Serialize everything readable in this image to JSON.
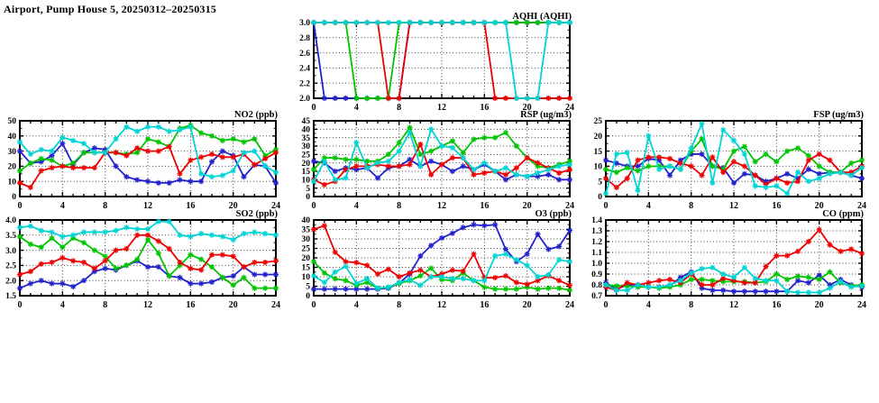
{
  "page": {
    "title": "Airport, Pump House 5, 20250312–20250315"
  },
  "palette": {
    "blue": "#2222cc",
    "green": "#00c400",
    "red": "#ee0000",
    "cyan": "#00d4d4",
    "axis": "#000000",
    "grid": "#444444",
    "background": "#ffffff"
  },
  "chart_data": [
    {
      "key": "aqhi",
      "type": "line",
      "title": "AQHI (AQHI)",
      "xmin": 0,
      "xmax": 24,
      "xtick_step": 4,
      "x_minor_step": 1,
      "ymin": 2.0,
      "ymax": 3.0,
      "ystep": 0.2,
      "ydecimals": 1,
      "grid": true,
      "legend": "none",
      "series": [
        {
          "name": "blue",
          "color_key": "blue",
          "values": [
            3,
            2,
            2,
            2,
            2,
            2,
            2,
            2,
            2,
            3,
            3,
            3,
            3,
            3,
            3,
            3,
            3,
            3,
            3,
            3,
            3,
            3,
            3,
            3,
            3
          ]
        },
        {
          "name": "green",
          "color_key": "green",
          "values": [
            3,
            3,
            3,
            3,
            2,
            2,
            2,
            2,
            3,
            3,
            3,
            3,
            3,
            3,
            3,
            3,
            3,
            3,
            3,
            3,
            3,
            3,
            3,
            3,
            3
          ]
        },
        {
          "name": "red",
          "color_key": "red",
          "values": [
            3,
            3,
            3,
            3,
            3,
            3,
            3,
            2,
            2,
            3,
            3,
            3,
            3,
            3,
            3,
            3,
            3,
            2,
            2,
            2,
            2,
            2,
            2,
            2,
            2
          ]
        },
        {
          "name": "cyan",
          "color_key": "cyan",
          "values": [
            3,
            3,
            3,
            3,
            3,
            3,
            3,
            3,
            3,
            3,
            3,
            3,
            3,
            3,
            3,
            3,
            3,
            3,
            3,
            2,
            2,
            2,
            3,
            3,
            3
          ]
        }
      ]
    },
    {
      "key": "no2",
      "type": "line",
      "title": "NO2 (ppb)",
      "xmin": 0,
      "xmax": 24,
      "xtick_step": 4,
      "x_minor_step": 1,
      "ymin": 0,
      "ymax": 50,
      "ystep": 10,
      "ydecimals": 0,
      "grid": true,
      "legend": "none",
      "series": [
        {
          "name": "blue",
          "color_key": "blue",
          "values": [
            30,
            22,
            23,
            27,
            35,
            21,
            29,
            32,
            31,
            20,
            13,
            11,
            10,
            9,
            9,
            11,
            10,
            10,
            23,
            30,
            27,
            13,
            21,
            20,
            9
          ]
        },
        {
          "name": "green",
          "color_key": "green",
          "values": [
            17,
            22,
            25,
            24,
            20,
            22,
            29,
            29,
            29,
            29,
            28,
            29,
            38,
            36,
            33,
            45,
            47,
            42,
            40,
            37,
            38,
            36,
            38,
            27,
            31
          ]
        },
        {
          "name": "red",
          "color_key": "red",
          "values": [
            9,
            6,
            17,
            19,
            20,
            19,
            19,
            19,
            29,
            29,
            27,
            32,
            30,
            30,
            33,
            15,
            24,
            26,
            28,
            26,
            26,
            28,
            21,
            25,
            29
          ]
        },
        {
          "name": "cyan",
          "color_key": "cyan",
          "values": [
            36,
            28,
            31,
            30,
            39,
            37,
            35,
            29,
            29,
            38,
            46,
            43,
            46,
            46,
            43,
            44,
            46,
            15,
            13,
            14,
            17,
            29,
            30,
            20,
            16
          ]
        }
      ]
    },
    {
      "key": "rsp",
      "type": "line",
      "title": "RSP (ug/m3)",
      "xmin": 0,
      "xmax": 24,
      "xtick_step": 4,
      "x_minor_step": 1,
      "ymin": 0,
      "ymax": 45,
      "ystep": 5,
      "ydecimals": 0,
      "grid": true,
      "legend": "none",
      "series": [
        {
          "name": "blue",
          "color_key": "blue",
          "values": [
            21,
            20,
            15,
            17,
            16,
            17,
            11,
            17,
            18,
            22,
            18,
            21,
            19,
            15,
            18,
            16,
            19,
            15,
            10,
            13,
            12,
            12,
            13,
            10,
            10
          ]
        },
        {
          "name": "green",
          "color_key": "green",
          "values": [
            16,
            23,
            23,
            22,
            22,
            21,
            21,
            25,
            32,
            41,
            25,
            27,
            30,
            33,
            26,
            34,
            35,
            35,
            38,
            30,
            23,
            18,
            17,
            19,
            21
          ]
        },
        {
          "name": "red",
          "color_key": "red",
          "values": [
            10,
            7,
            9,
            16,
            18,
            18,
            19,
            18,
            18,
            19,
            31,
            13,
            19,
            23,
            23,
            13,
            14,
            15,
            13,
            17,
            23,
            20,
            17,
            14,
            16
          ]
        },
        {
          "name": "cyan",
          "color_key": "cyan",
          "values": [
            9,
            21,
            10,
            11,
            32,
            17,
            20,
            21,
            27,
            38,
            18,
            40,
            30,
            29,
            23,
            16,
            20,
            15,
            17,
            13,
            12,
            14,
            16,
            18,
            19
          ]
        }
      ]
    },
    {
      "key": "fsp",
      "type": "line",
      "title": "FSP (ug/m3)",
      "xmin": 0,
      "xmax": 24,
      "xtick_step": 4,
      "x_minor_step": 1,
      "ymin": 0,
      "ymax": 25,
      "ystep": 5,
      "ydecimals": 0,
      "grid": true,
      "legend": "none",
      "series": [
        {
          "name": "blue",
          "color_key": "blue",
          "values": [
            12,
            11,
            10,
            10,
            12.5,
            12,
            7,
            12,
            14,
            14,
            10,
            9.5,
            4.5,
            7.5,
            7,
            5,
            6,
            7.5,
            6,
            9,
            7.5,
            8,
            8,
            7,
            6
          ]
        },
        {
          "name": "green",
          "color_key": "green",
          "values": [
            9,
            8,
            9.5,
            8.5,
            10,
            10,
            10,
            9,
            15,
            19,
            10,
            9,
            15,
            16.5,
            11.5,
            14,
            11.5,
            15,
            16,
            13.5,
            10,
            8,
            8,
            11,
            12
          ]
        },
        {
          "name": "red",
          "color_key": "red",
          "values": [
            6,
            3,
            6,
            12,
            13,
            13,
            12.5,
            11,
            10,
            7,
            13,
            8,
            11.5,
            10,
            7,
            4,
            6,
            4.5,
            5,
            12,
            14,
            12,
            8,
            8,
            10
          ]
        },
        {
          "name": "cyan",
          "color_key": "cyan",
          "values": [
            1,
            14,
            14.5,
            2,
            20,
            9,
            10,
            9,
            16,
            24,
            4.5,
            22,
            18.5,
            14,
            3.5,
            3,
            3.5,
            1,
            8,
            5,
            6,
            7.5,
            8,
            7,
            9.5
          ]
        }
      ]
    },
    {
      "key": "so2",
      "type": "line",
      "title": "SO2 (ppb)",
      "xmin": 0,
      "xmax": 24,
      "xtick_step": 4,
      "x_minor_step": 1,
      "ymin": 1.5,
      "ymax": 4.0,
      "ystep": 0.5,
      "ydecimals": 1,
      "grid": true,
      "legend": "none",
      "series": [
        {
          "name": "blue",
          "color_key": "blue",
          "values": [
            1.75,
            1.9,
            2.0,
            1.9,
            1.9,
            1.8,
            2.0,
            2.3,
            2.4,
            2.35,
            2.5,
            2.65,
            2.45,
            2.45,
            2.15,
            2.1,
            1.9,
            1.9,
            1.95,
            2.1,
            2.15,
            2.45,
            2.2,
            2.2,
            2.2
          ]
        },
        {
          "name": "green",
          "color_key": "green",
          "values": [
            3.45,
            3.2,
            3.1,
            3.4,
            3.1,
            3.4,
            3.25,
            3.0,
            2.8,
            2.4,
            2.5,
            2.7,
            3.35,
            2.9,
            2.15,
            2.5,
            2.85,
            2.7,
            2.45,
            2.1,
            1.85,
            2.1,
            1.75,
            1.75,
            1.75
          ]
        },
        {
          "name": "red",
          "color_key": "red",
          "values": [
            2.2,
            2.3,
            2.55,
            2.6,
            2.75,
            2.65,
            2.6,
            2.4,
            2.65,
            3.0,
            3.05,
            3.5,
            3.5,
            3.3,
            3.05,
            2.6,
            2.4,
            2.35,
            2.85,
            2.85,
            2.8,
            2.45,
            2.6,
            2.6,
            2.65
          ]
        },
        {
          "name": "cyan",
          "color_key": "cyan",
          "values": [
            3.75,
            3.8,
            3.65,
            3.6,
            3.45,
            3.5,
            3.6,
            3.6,
            3.6,
            3.65,
            3.75,
            3.7,
            3.7,
            3.95,
            3.95,
            3.5,
            3.45,
            3.55,
            3.5,
            3.45,
            3.35,
            3.55,
            3.6,
            3.55,
            3.5
          ]
        }
      ]
    },
    {
      "key": "o3",
      "type": "line",
      "title": "O3 (ppb)",
      "xmin": 0,
      "xmax": 24,
      "xtick_step": 4,
      "x_minor_step": 1,
      "ymin": 0,
      "ymax": 40,
      "ystep": 5,
      "ydecimals": 0,
      "grid": true,
      "legend": "none",
      "series": [
        {
          "name": "blue",
          "color_key": "blue",
          "values": [
            3.5,
            3.5,
            3.5,
            3.5,
            3.5,
            3.5,
            3.5,
            4,
            6.5,
            11.5,
            21,
            26.5,
            30.5,
            33,
            36,
            37.5,
            37,
            37.5,
            24.5,
            18,
            22,
            32.5,
            24.5,
            26,
            34.5
          ]
        },
        {
          "name": "green",
          "color_key": "green",
          "values": [
            18,
            12,
            9,
            8,
            5.5,
            7,
            4,
            4.5,
            6.5,
            8,
            10.5,
            14.5,
            8.5,
            8,
            12,
            8,
            4.5,
            3.5,
            3.5,
            3.5,
            4.5,
            3.5,
            4,
            4,
            3
          ]
        },
        {
          "name": "red",
          "color_key": "red",
          "values": [
            35,
            37,
            23,
            18,
            17.5,
            16,
            11.5,
            14,
            10,
            12,
            13.5,
            10,
            11.5,
            13.5,
            13,
            22,
            9.5,
            9.5,
            10.5,
            7,
            6,
            8,
            10.5,
            8,
            5.5
          ]
        },
        {
          "name": "cyan",
          "color_key": "cyan",
          "values": [
            10.5,
            7,
            12.5,
            15.5,
            6.5,
            9,
            4,
            4.5,
            7,
            8.5,
            5.5,
            10,
            10,
            9,
            9,
            8,
            8,
            21,
            22,
            19,
            16,
            10,
            11,
            19,
            18
          ]
        }
      ]
    },
    {
      "key": "co",
      "type": "line",
      "title": "CO (ppm)",
      "xmin": 0,
      "xmax": 24,
      "xtick_step": 4,
      "x_minor_step": 1,
      "ymin": 0.7,
      "ymax": 1.4,
      "ystep": 0.1,
      "ydecimals": 1,
      "grid": true,
      "legend": "none",
      "series": [
        {
          "name": "blue",
          "color_key": "blue",
          "values": [
            0.82,
            0.76,
            0.8,
            0.8,
            0.78,
            0.78,
            0.79,
            0.87,
            0.92,
            0.77,
            0.75,
            0.75,
            0.74,
            0.74,
            0.74,
            0.74,
            0.74,
            0.74,
            0.84,
            0.82,
            0.89,
            0.8,
            0.85,
            0.8,
            0.78
          ]
        },
        {
          "name": "green",
          "color_key": "green",
          "values": [
            0.8,
            0.79,
            0.79,
            0.78,
            0.78,
            0.77,
            0.78,
            0.8,
            0.85,
            0.85,
            0.84,
            0.83,
            0.83,
            0.83,
            0.82,
            0.83,
            0.9,
            0.85,
            0.88,
            0.87,
            0.85,
            0.92,
            0.82,
            0.79,
            0.8
          ]
        },
        {
          "name": "red",
          "color_key": "red",
          "values": [
            0.78,
            0.75,
            0.82,
            0.8,
            0.82,
            0.84,
            0.85,
            0.82,
            0.9,
            0.8,
            0.8,
            0.86,
            0.84,
            0.82,
            0.82,
            0.97,
            1.07,
            1.07,
            1.11,
            1.2,
            1.31,
            1.17,
            1.11,
            1.13,
            1.09
          ]
        },
        {
          "name": "cyan",
          "color_key": "cyan",
          "values": [
            0.8,
            0.75,
            0.75,
            0.8,
            0.78,
            0.78,
            0.8,
            0.84,
            0.91,
            0.95,
            0.96,
            0.9,
            0.87,
            0.96,
            0.86,
            0.84,
            0.84,
            0.74,
            0.73,
            0.73,
            0.73,
            0.77,
            0.83,
            0.78,
            0.79
          ]
        }
      ]
    }
  ]
}
